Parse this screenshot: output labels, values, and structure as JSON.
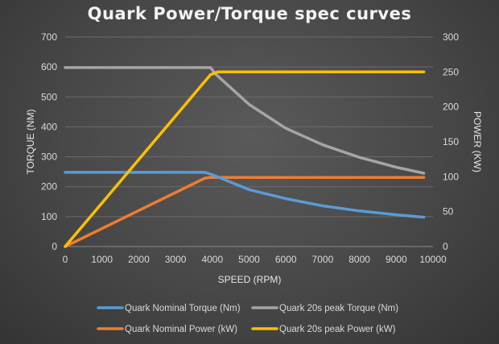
{
  "chart_data": {
    "type": "line",
    "title": "Quark Power/Torque spec curves",
    "xlabel": "SPEED (RPM)",
    "ylabel": "TORQUE (NM)",
    "y2label": "POWER (KW)",
    "xlim": [
      0,
      10000
    ],
    "xticks": [
      "0",
      "1000",
      "2000",
      "3000",
      "4000",
      "5000",
      "6000",
      "7000",
      "8000",
      "9000",
      "10000"
    ],
    "ylim": [
      0,
      700
    ],
    "yticks": [
      "0",
      "100",
      "200",
      "300",
      "400",
      "500",
      "600",
      "700"
    ],
    "y2lim": [
      0,
      300
    ],
    "y2ticks": [
      "0",
      "50",
      "100",
      "150",
      "200",
      "250",
      "300"
    ],
    "grid": true,
    "legend_position": "bottom",
    "series": [
      {
        "name": "Quark Nominal Torque (Nm)",
        "axis": "left",
        "color": "#5b9bd5",
        "x": [
          0,
          3800,
          4000,
          5000,
          6000,
          7000,
          8000,
          9000,
          9750
        ],
        "y": [
          248,
          248,
          240,
          190,
          160,
          136,
          119,
          106,
          98
        ]
      },
      {
        "name": "Quark 20s peak Torque (Nm)",
        "axis": "left",
        "color": "#a5a5a5",
        "x": [
          0,
          3950,
          4100,
          5000,
          6000,
          7000,
          8000,
          9000,
          9750
        ],
        "y": [
          598,
          598,
          575,
          475,
          395,
          340,
          298,
          265,
          245
        ]
      },
      {
        "name": "Quark Nominal Power (kW)",
        "axis": "right",
        "color": "#ed7d31",
        "x": [
          0,
          3800,
          3950,
          9750
        ],
        "y": [
          0,
          98,
          99,
          99
        ]
      },
      {
        "name": "Quark 20s peak Power (kW)",
        "axis": "right",
        "color": "#ffc000",
        "x": [
          0,
          3950,
          4150,
          9750
        ],
        "y": [
          0,
          246,
          250,
          250
        ]
      }
    ]
  }
}
